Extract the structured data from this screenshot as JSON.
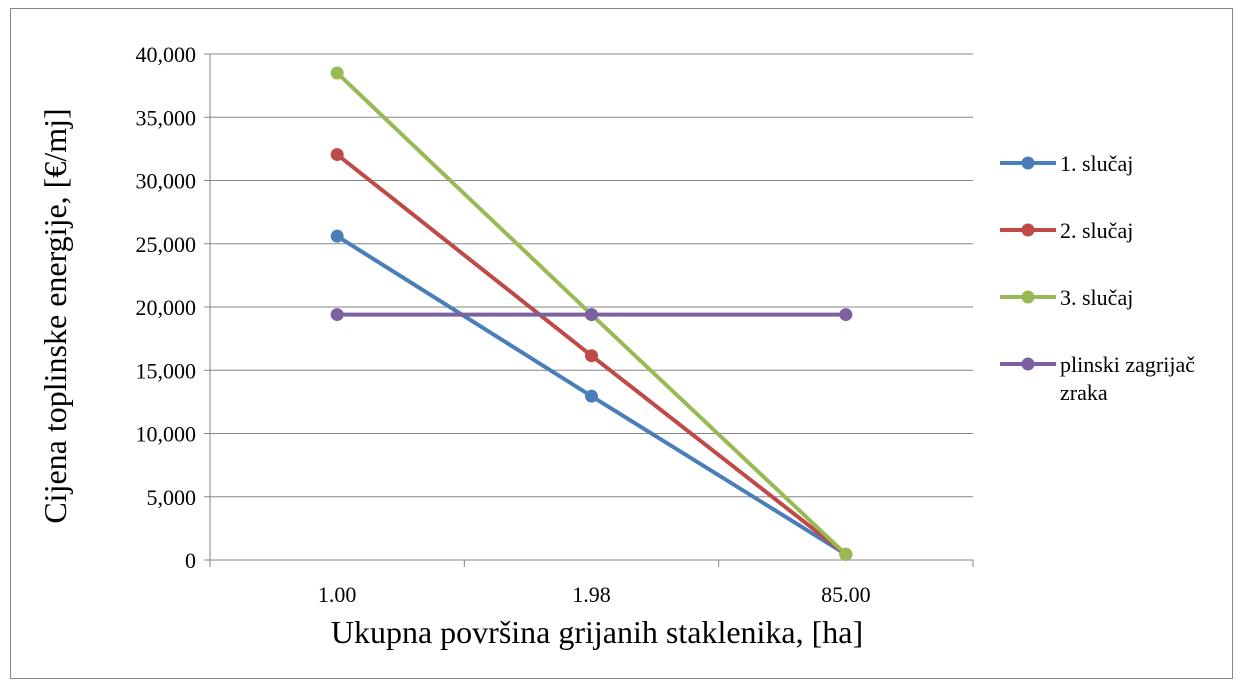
{
  "chart_data": {
    "type": "line",
    "title": "",
    "xlabel": "Ukupna površina grijanih staklenika, [ha]",
    "ylabel": "Cijena toplinske energije, [€/mj]",
    "categories": [
      "1.00",
      "1.98",
      "85.00"
    ],
    "ylim": [
      0,
      40000
    ],
    "yticks": [
      0,
      5000,
      10000,
      15000,
      20000,
      25000,
      30000,
      35000,
      40000
    ],
    "ytick_labels": [
      "0",
      "5,000",
      "10,000",
      "15,000",
      "20,000",
      "25,000",
      "30,000",
      "35,000",
      "40,000"
    ],
    "grid": "horizontal",
    "legend_position": "right",
    "series": [
      {
        "name": "1. slučaj",
        "color": "#4a7ebb",
        "values": [
          25600,
          12950,
          450
        ]
      },
      {
        "name": "2. slučaj",
        "color": "#be4b48",
        "values": [
          32050,
          16150,
          450
        ]
      },
      {
        "name": "3. slučaj",
        "color": "#98b954",
        "values": [
          38500,
          19400,
          450
        ]
      },
      {
        "name": "plinski zagrijač zraka",
        "legend_lines": [
          "plinski zagrijač",
          "zraka"
        ],
        "color": "#7d60a0",
        "values": [
          19400,
          19400,
          19400
        ]
      }
    ]
  }
}
